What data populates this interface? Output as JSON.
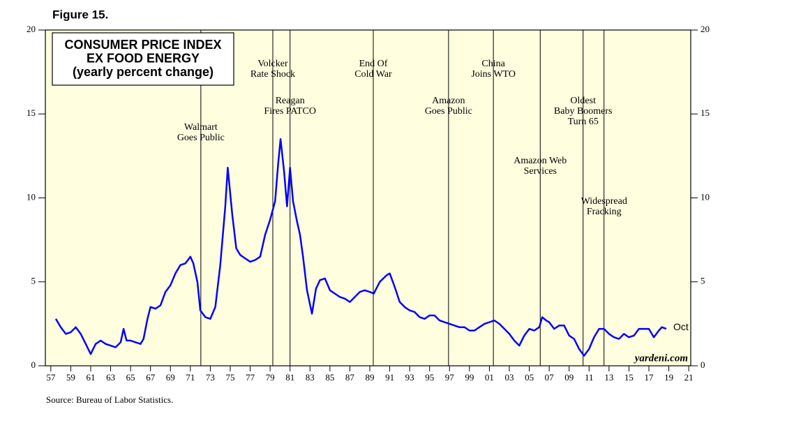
{
  "chart_data": {
    "type": "line",
    "figure": "Figure 15.",
    "title": [
      "CONSUMER PRICE INDEX",
      "EX FOOD ENERGY",
      "(yearly percent change)"
    ],
    "source": "Source: Bureau of Labor Statistics.",
    "watermark": "yardeni.com",
    "end_label": "Oct",
    "color": "#0000ff",
    "background": "#ffffe0",
    "xlim": [
      1956.45,
      2021.2
    ],
    "ylim": [
      0,
      20
    ],
    "yticks": [
      0,
      5,
      10,
      15,
      20
    ],
    "xticks": [
      {
        "value": 1957,
        "label": "57"
      },
      {
        "value": 1959,
        "label": "59"
      },
      {
        "value": 1961,
        "label": "61"
      },
      {
        "value": 1963,
        "label": "63"
      },
      {
        "value": 1965,
        "label": "65"
      },
      {
        "value": 1967,
        "label": "67"
      },
      {
        "value": 1969,
        "label": "69"
      },
      {
        "value": 1971,
        "label": "71"
      },
      {
        "value": 1973,
        "label": "73"
      },
      {
        "value": 1975,
        "label": "75"
      },
      {
        "value": 1977,
        "label": "77"
      },
      {
        "value": 1979,
        "label": "79"
      },
      {
        "value": 1981,
        "label": "81"
      },
      {
        "value": 1983,
        "label": "83"
      },
      {
        "value": 1985,
        "label": "85"
      },
      {
        "value": 1987,
        "label": "87"
      },
      {
        "value": 1989,
        "label": "89"
      },
      {
        "value": 1991,
        "label": "91"
      },
      {
        "value": 1993,
        "label": "93"
      },
      {
        "value": 1995,
        "label": "95"
      },
      {
        "value": 1997,
        "label": "97"
      },
      {
        "value": 1999,
        "label": "99"
      },
      {
        "value": 2001,
        "label": "01"
      },
      {
        "value": 2003,
        "label": "03"
      },
      {
        "value": 2005,
        "label": "05"
      },
      {
        "value": 2007,
        "label": "07"
      },
      {
        "value": 2009,
        "label": "09"
      },
      {
        "value": 2011,
        "label": "11"
      },
      {
        "value": 2013,
        "label": "13"
      },
      {
        "value": 2015,
        "label": "15"
      },
      {
        "value": 2017,
        "label": "17"
      },
      {
        "value": 2019,
        "label": "19"
      },
      {
        "value": 2021,
        "label": "21"
      }
    ],
    "events": [
      {
        "x": 1972.05,
        "lines": [
          "Walmart",
          "Goes Public"
        ]
      },
      {
        "x": 1979.27,
        "lines": [
          "Volcker",
          "Rate Shock"
        ]
      },
      {
        "x": 1981.0,
        "lines": [
          "Reagan",
          "Fires PATCO"
        ]
      },
      {
        "x": 1989.35,
        "lines": [
          "End Of",
          "Cold War"
        ]
      },
      {
        "x": 1996.9,
        "lines": [
          "Amazon",
          "Goes Public"
        ]
      },
      {
        "x": 2001.4,
        "lines": [
          "China",
          "Joins WTO"
        ]
      },
      {
        "x": 2006.1,
        "lines": [
          "Amazon Web",
          "Services"
        ]
      },
      {
        "x": 2010.4,
        "lines": [
          "Oldest",
          "Baby Boomers",
          "Turn 65"
        ]
      },
      {
        "x": 2012.5,
        "lines": [
          "Widespread",
          "Fracking"
        ]
      }
    ],
    "x": [
      1957.5,
      1958,
      1958.5,
      1959,
      1959.5,
      1960,
      1960.5,
      1961,
      1961.5,
      1962,
      1962.5,
      1963,
      1963.5,
      1964,
      1964.3,
      1964.6,
      1965,
      1965.5,
      1966,
      1966.3,
      1966.7,
      1967,
      1967.5,
      1968,
      1968.5,
      1969,
      1969.5,
      1970,
      1970.5,
      1971,
      1971.3,
      1971.7,
      1972,
      1972.5,
      1973,
      1973.5,
      1974,
      1974.5,
      1974.75,
      1975.2,
      1975.6,
      1976,
      1976.5,
      1977,
      1977.5,
      1978,
      1978.5,
      1979,
      1979.5,
      1979.8,
      1980.05,
      1980.4,
      1980.7,
      1981.0,
      1981.3,
      1981.7,
      1982.0,
      1982.3,
      1982.7,
      1983.2,
      1983.6,
      1984,
      1984.5,
      1985,
      1985.5,
      1986,
      1986.5,
      1987,
      1987.5,
      1988,
      1988.5,
      1989,
      1989.4,
      1990,
      1990.7,
      1991,
      1991.5,
      1992,
      1992.5,
      1993,
      1993.5,
      1994,
      1994.5,
      1995,
      1995.5,
      1996,
      1996.5,
      1997,
      1997.5,
      1998,
      1998.5,
      1999,
      1999.5,
      2000,
      2000.5,
      2001,
      2001.5,
      2002,
      2002.5,
      2003,
      2003.5,
      2004,
      2004.5,
      2005,
      2005.5,
      2006,
      2006.3,
      2006.7,
      2007,
      2007.5,
      2008,
      2008.5,
      2009,
      2009.5,
      2010,
      2010.5,
      2011,
      2011.5,
      2012,
      2012.5,
      2013,
      2013.5,
      2014,
      2014.5,
      2015,
      2015.5,
      2016,
      2016.5,
      2017,
      2017.5,
      2018,
      2018.3,
      2018.75
    ],
    "values": [
      2.8,
      2.3,
      1.9,
      2.0,
      2.3,
      1.9,
      1.3,
      0.7,
      1.3,
      1.5,
      1.3,
      1.2,
      1.1,
      1.4,
      2.2,
      1.5,
      1.5,
      1.4,
      1.3,
      1.6,
      2.8,
      3.5,
      3.4,
      3.6,
      4.4,
      4.8,
      5.5,
      6.0,
      6.1,
      6.5,
      6.1,
      5.0,
      3.3,
      2.9,
      2.8,
      3.5,
      6.0,
      9.5,
      11.8,
      9.0,
      7.0,
      6.6,
      6.4,
      6.2,
      6.3,
      6.5,
      7.8,
      8.7,
      9.8,
      12.0,
      13.5,
      11.6,
      9.5,
      11.8,
      9.8,
      8.6,
      7.8,
      6.5,
      4.5,
      3.1,
      4.6,
      5.1,
      5.2,
      4.5,
      4.3,
      4.1,
      4.0,
      3.8,
      4.1,
      4.4,
      4.5,
      4.4,
      4.3,
      5.0,
      5.4,
      5.5,
      4.7,
      3.8,
      3.5,
      3.3,
      3.2,
      2.9,
      2.8,
      3.0,
      3.0,
      2.7,
      2.6,
      2.5,
      2.4,
      2.3,
      2.3,
      2.1,
      2.1,
      2.3,
      2.5,
      2.6,
      2.7,
      2.5,
      2.2,
      1.9,
      1.5,
      1.2,
      1.8,
      2.2,
      2.1,
      2.3,
      2.9,
      2.7,
      2.6,
      2.2,
      2.4,
      2.4,
      1.8,
      1.6,
      1.0,
      0.6,
      1.0,
      1.7,
      2.2,
      2.2,
      1.9,
      1.7,
      1.6,
      1.9,
      1.7,
      1.8,
      2.2,
      2.2,
      2.2,
      1.7,
      2.1,
      2.3,
      2.2
    ]
  }
}
